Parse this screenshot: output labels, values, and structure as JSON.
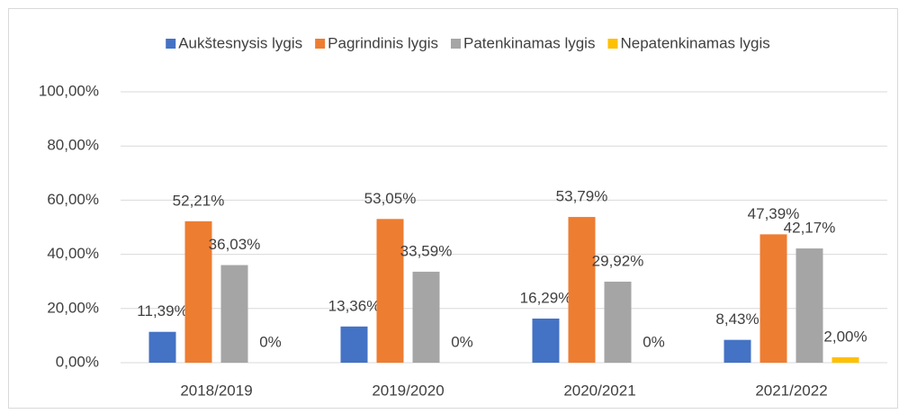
{
  "chart_data": {
    "type": "bar",
    "categories": [
      "2018/2019",
      "2019/2020",
      "2020/2021",
      "2021/2022"
    ],
    "series": [
      {
        "name": "Aukštesnysis lygis",
        "color": "#4472c4",
        "values": [
          11.39,
          13.36,
          16.29,
          8.43
        ],
        "value_labels": [
          "11,39%",
          "13,36%",
          "16,29%",
          "8,43%"
        ]
      },
      {
        "name": "Pagrindinis lygis",
        "color": "#ed7d31",
        "values": [
          52.21,
          53.05,
          53.79,
          47.39
        ],
        "value_labels": [
          "52,21%",
          "53,05%",
          "53,79%",
          "47,39%"
        ]
      },
      {
        "name": "Patenkinamas lygis",
        "color": "#a5a5a5",
        "values": [
          36.03,
          33.59,
          29.92,
          42.17
        ],
        "value_labels": [
          "36,03%",
          "33,59%",
          "29,92%",
          "42,17%"
        ]
      },
      {
        "name": "Nepatenkinamas lygis",
        "color": "#ffc000",
        "values": [
          0,
          0,
          0,
          2.0
        ],
        "value_labels": [
          "0%",
          "0%",
          "0%",
          "2,00%"
        ]
      }
    ],
    "ylim": [
      0,
      100
    ],
    "yticks": [
      {
        "value": 0,
        "label": "0,00%"
      },
      {
        "value": 20,
        "label": "20,00%"
      },
      {
        "value": 40,
        "label": "40,00%"
      },
      {
        "value": 60,
        "label": "60,00%"
      },
      {
        "value": 80,
        "label": "80,00%"
      },
      {
        "value": 100,
        "label": "100,00%"
      }
    ],
    "grid": true,
    "legend": "top"
  }
}
